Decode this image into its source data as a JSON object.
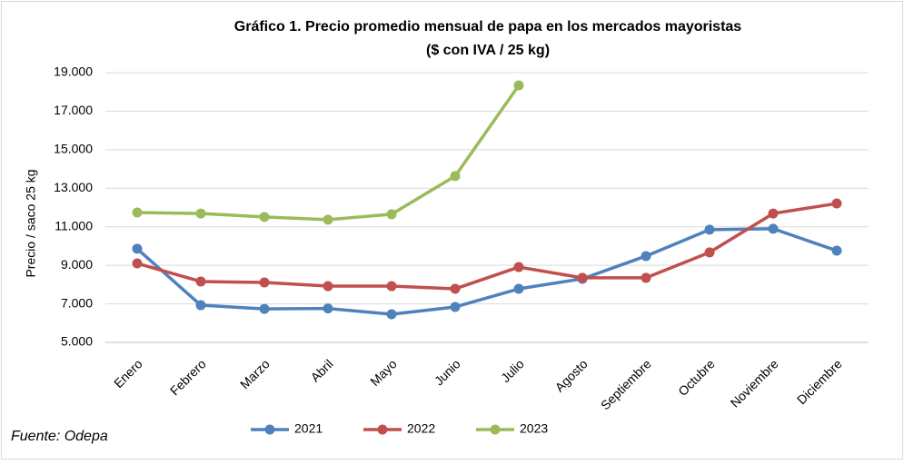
{
  "chart_data": {
    "type": "line",
    "title": "Gráfico 1. Precio promedio mensual de papa en los mercados mayoristas",
    "subtitle": "($ con IVA / 25 kg)",
    "y_label": "Precio / saco 25 kg",
    "source": "Fuente: Odepa",
    "categories": [
      "Enero",
      "Febrero",
      "Marzo",
      "Abril",
      "Mayo",
      "Junio",
      "Julio",
      "Agosto",
      "Septiembre",
      "Octubre",
      "Noviembre",
      "Diciembre"
    ],
    "series": [
      {
        "name": "2021",
        "color": "#4f81bd",
        "values": [
          9860,
          6930,
          6740,
          6760,
          6460,
          6840,
          7780,
          8300,
          9480,
          10850,
          10900,
          9760
        ]
      },
      {
        "name": "2022",
        "color": "#c0504d",
        "values": [
          9100,
          8160,
          8110,
          7920,
          7920,
          7780,
          8910,
          8350,
          8350,
          9670,
          11690,
          12210
        ]
      },
      {
        "name": "2023",
        "color": "#9bbb59",
        "values": [
          11740,
          11690,
          11510,
          11370,
          11650,
          13630,
          18340,
          null,
          null,
          null,
          null,
          null
        ]
      }
    ],
    "ylim": [
      5000,
      19000
    ],
    "yticks": [
      {
        "value": 5000,
        "label": "5.000"
      },
      {
        "value": 7000,
        "label": "7.000"
      },
      {
        "value": 9000,
        "label": "9.000"
      },
      {
        "value": 11000,
        "label": "11.000"
      },
      {
        "value": 13000,
        "label": "13.000"
      },
      {
        "value": 15000,
        "label": "15.000"
      },
      {
        "value": 17000,
        "label": "17.000"
      },
      {
        "value": 19000,
        "label": "19.000"
      }
    ],
    "grid": true,
    "legend": "bottom"
  }
}
